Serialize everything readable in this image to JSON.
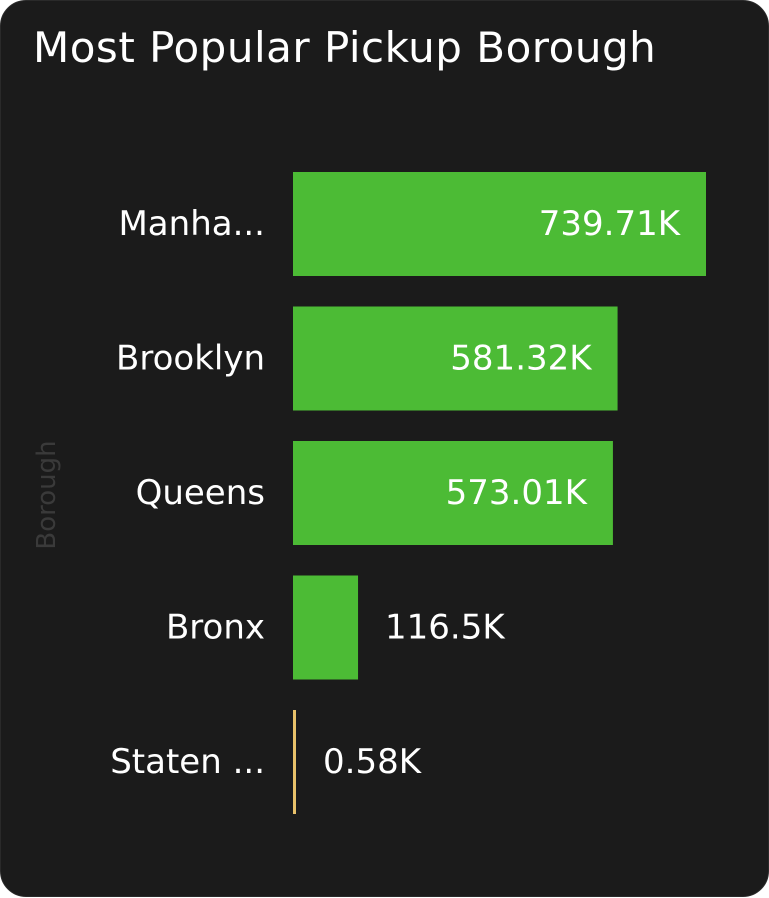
{
  "chart_data": {
    "type": "bar",
    "orientation": "horizontal",
    "title": "Most Popular Pickup Borough",
    "ylabel": "Borough",
    "xlabel": "",
    "categories": [
      "Manha...",
      "Brooklyn",
      "Queens",
      "Bronx",
      "Staten ..."
    ],
    "values": [
      739.71,
      581.32,
      573.01,
      116.5,
      0.58
    ],
    "value_labels": [
      "739.71K",
      "581.32K",
      "573.01K",
      "116.5K",
      "0.58K"
    ],
    "xlim": [
      0,
      739.71
    ],
    "grid": false,
    "legend": "none"
  },
  "colors": {
    "background": "#1b1b1b",
    "bar": "#4cbb35",
    "small_bar": "#e8c16a",
    "text": "#ffffff",
    "axis_title": "#3a3a3a"
  }
}
